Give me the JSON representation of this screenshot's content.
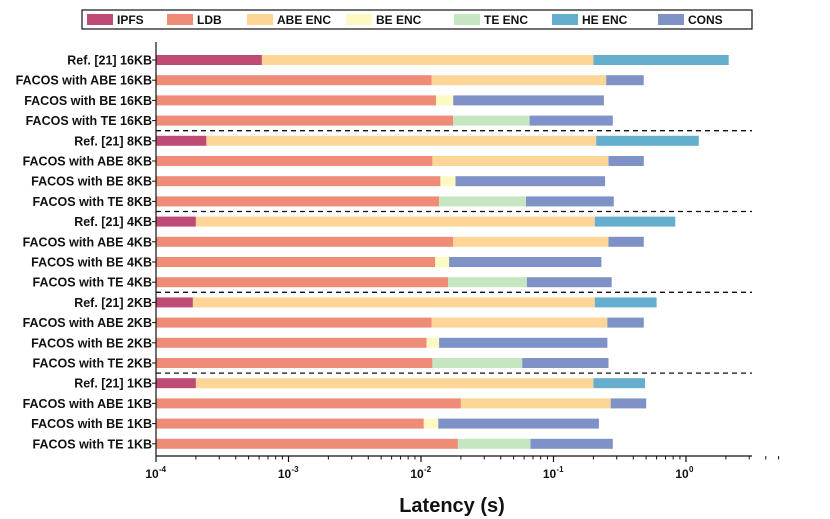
{
  "chart_data": {
    "type": "bar",
    "orientation": "horizontal",
    "stacked": true,
    "xscale": "log",
    "xlabel": "Latency (s)",
    "xlim": [
      0.0001,
      5
    ],
    "xticks": [
      {
        "base": "10",
        "exp": "-4"
      },
      {
        "base": "10",
        "exp": "-3"
      },
      {
        "base": "10",
        "exp": "-2"
      },
      {
        "base": "10",
        "exp": "-1"
      },
      {
        "base": "10",
        "exp": "0"
      }
    ],
    "xtick_values": [
      0.0001,
      0.001,
      0.01,
      0.1,
      1
    ],
    "legend_position": "top",
    "series": [
      {
        "name": "IPFS",
        "color": "#c04a76"
      },
      {
        "name": "LDB",
        "color": "#ee8c78"
      },
      {
        "name": "ABE ENC",
        "color": "#fcd597"
      },
      {
        "name": "BE ENC",
        "color": "#fdf9c2"
      },
      {
        "name": "TE ENC",
        "color": "#c6e6c2"
      },
      {
        "name": "HE ENC",
        "color": "#66aece"
      },
      {
        "name": "CONS",
        "color": "#7e92c8"
      }
    ],
    "categories": [
      "Ref. [21] 16KB",
      "FACOS with ABE 16KB",
      "FACOS with BE 16KB",
      "FACOS with TE 16KB",
      "Ref. [21] 8KB",
      "FACOS with ABE 8KB",
      "FACOS with BE 8KB",
      "FACOS with TE 8KB",
      "Ref. [21] 4KB",
      "FACOS with ABE 4KB",
      "FACOS with BE 4KB",
      "FACOS with TE 4KB",
      "Ref. [21] 2KB",
      "FACOS with ABE 2KB",
      "FACOS with BE 2KB",
      "FACOS with TE 2KB",
      "Ref. [21] 1KB",
      "FACOS with ABE 1KB",
      "FACOS with BE 1KB",
      "FACOS with TE 1KB"
    ],
    "cumulative_ends": [
      [
        [
          "IPFS",
          0.00063
        ],
        [
          "ABE ENC",
          0.2
        ],
        [
          "HE ENC",
          2.1
        ]
      ],
      [
        [
          "LDB",
          0.012
        ],
        [
          "ABE ENC",
          0.25
        ],
        [
          "CONS",
          0.48
        ]
      ],
      [
        [
          "LDB",
          0.013
        ],
        [
          "BE ENC",
          0.0175
        ],
        [
          "CONS",
          0.24
        ]
      ],
      [
        [
          "LDB",
          0.0175
        ],
        [
          "TE ENC",
          0.066
        ],
        [
          "CONS",
          0.28
        ]
      ],
      [
        [
          "IPFS",
          0.00024
        ],
        [
          "ABE ENC",
          0.21
        ],
        [
          "HE ENC",
          1.25
        ]
      ],
      [
        [
          "LDB",
          0.0122
        ],
        [
          "ABE ENC",
          0.26
        ],
        [
          "CONS",
          0.48
        ]
      ],
      [
        [
          "LDB",
          0.014
        ],
        [
          "BE ENC",
          0.0182
        ],
        [
          "CONS",
          0.245
        ]
      ],
      [
        [
          "LDB",
          0.0137
        ],
        [
          "TE ENC",
          0.062
        ],
        [
          "CONS",
          0.285
        ]
      ],
      [
        [
          "IPFS",
          0.0002
        ],
        [
          "ABE ENC",
          0.205
        ],
        [
          "HE ENC",
          0.83
        ]
      ],
      [
        [
          "LDB",
          0.0175
        ],
        [
          "ABE ENC",
          0.26
        ],
        [
          "CONS",
          0.48
        ]
      ],
      [
        [
          "LDB",
          0.0128
        ],
        [
          "BE ENC",
          0.0163
        ],
        [
          "CONS",
          0.23
        ]
      ],
      [
        [
          "LDB",
          0.016
        ],
        [
          "TE ENC",
          0.063
        ],
        [
          "CONS",
          0.275
        ]
      ],
      [
        [
          "IPFS",
          0.00019
        ],
        [
          "ABE ENC",
          0.205
        ],
        [
          "HE ENC",
          0.6
        ]
      ],
      [
        [
          "LDB",
          0.012
        ],
        [
          "ABE ENC",
          0.255
        ],
        [
          "CONS",
          0.48
        ]
      ],
      [
        [
          "LDB",
          0.011
        ],
        [
          "BE ENC",
          0.0137
        ],
        [
          "CONS",
          0.255
        ]
      ],
      [
        [
          "LDB",
          0.0122
        ],
        [
          "TE ENC",
          0.058
        ],
        [
          "CONS",
          0.26
        ]
      ],
      [
        [
          "IPFS",
          0.0002
        ],
        [
          "ABE ENC",
          0.2
        ],
        [
          "HE ENC",
          0.49
        ]
      ],
      [
        [
          "LDB",
          0.02
        ],
        [
          "ABE ENC",
          0.27
        ],
        [
          "CONS",
          0.5
        ]
      ],
      [
        [
          "LDB",
          0.0105
        ],
        [
          "BE ENC",
          0.0135
        ],
        [
          "CONS",
          0.22
        ]
      ],
      [
        [
          "LDB",
          0.019
        ],
        [
          "TE ENC",
          0.067
        ],
        [
          "CONS",
          0.28
        ]
      ]
    ]
  }
}
